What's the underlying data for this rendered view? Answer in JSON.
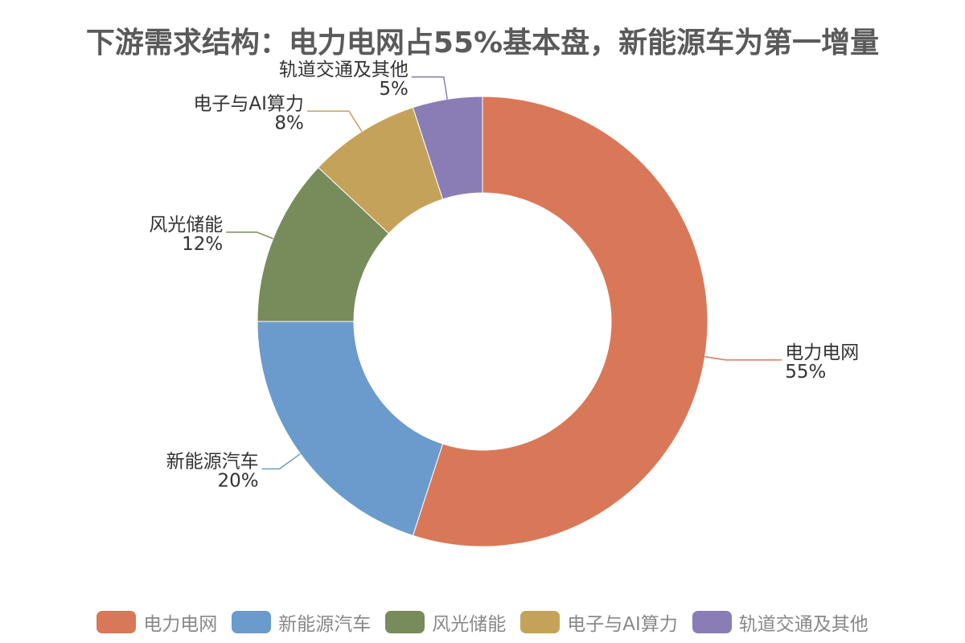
{
  "chart_data": {
    "type": "pie",
    "title": "下游需求结构：电力电网占55%基本盘，新能源车为第一增量",
    "donut": true,
    "legend_position": "bottom",
    "slices": [
      {
        "label": "电力电网",
        "value": 55,
        "display": "55%",
        "color": "#d97858"
      },
      {
        "label": "新能源汽车",
        "value": 20,
        "display": "20%",
        "color": "#6a9bcc"
      },
      {
        "label": "风光储能",
        "value": 12,
        "display": "12%",
        "color": "#788b5b"
      },
      {
        "label": "电子与AI算力",
        "value": 8,
        "display": "8%",
        "color": "#c4a259"
      },
      {
        "label": "轨道交通及其他",
        "value": 5,
        "display": "5%",
        "color": "#8a7db5"
      }
    ]
  }
}
